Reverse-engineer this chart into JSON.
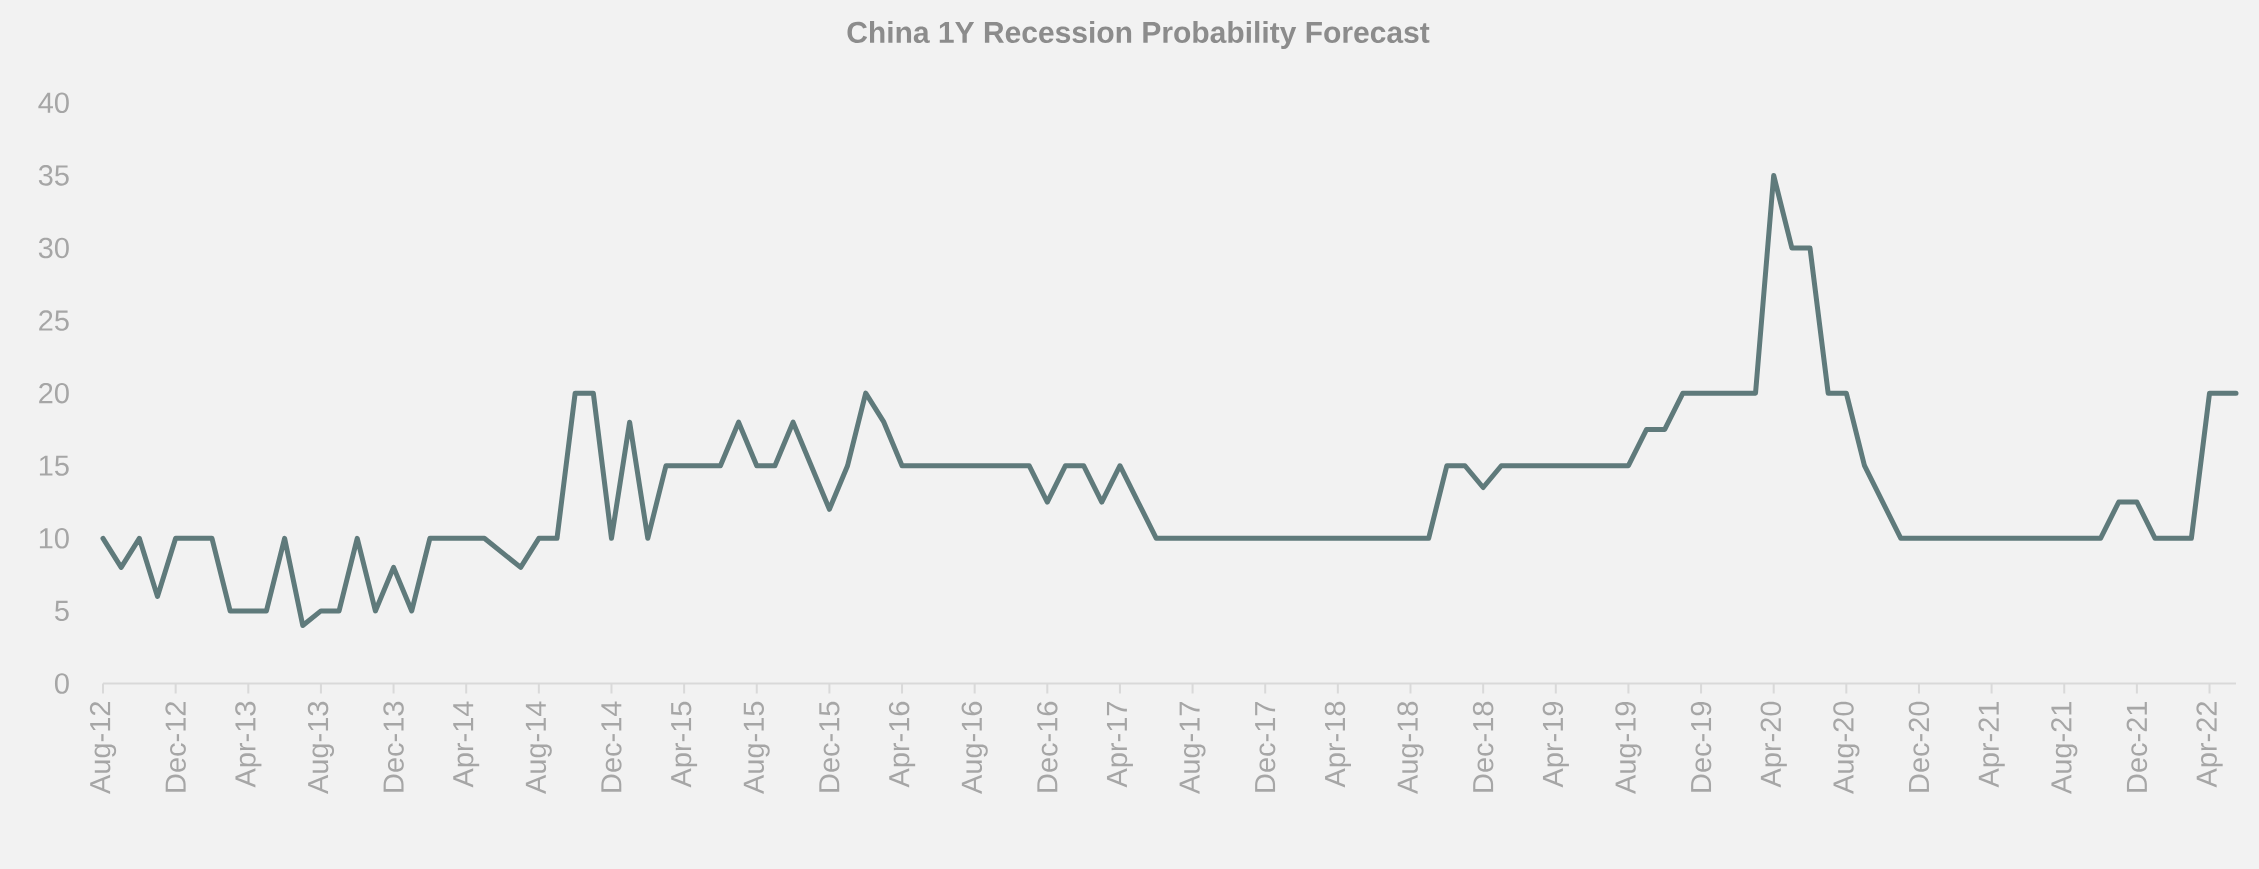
{
  "chart_data": {
    "type": "line",
    "title": "China 1Y Recession Probability Forecast",
    "x": [
      "2012-08",
      "2012-09",
      "2012-10",
      "2012-11",
      "2012-12",
      "2013-02",
      "2013-03",
      "2013-05",
      "2013-06",
      "2013-07",
      "2013-08",
      "2013-09",
      "2013-10",
      "2013-11",
      "2013-12",
      "2014-01",
      "2014-02",
      "2014-05",
      "2014-07",
      "2014-08",
      "2014-09",
      "2014-10",
      "2014-11",
      "2014-12",
      "2015-01",
      "2015-02",
      "2015-03",
      "2015-06",
      "2015-07",
      "2015-08",
      "2015-09",
      "2015-10",
      "2015-12",
      "2016-01",
      "2016-02",
      "2016-03",
      "2016-04",
      "2016-11",
      "2016-12",
      "2017-01",
      "2017-02",
      "2017-03",
      "2017-04",
      "2017-05",
      "2017-06",
      "2018-09",
      "2018-10",
      "2018-11",
      "2018-12",
      "2019-01",
      "2019-08",
      "2019-09",
      "2019-10",
      "2019-11",
      "2020-03",
      "2020-04",
      "2020-05",
      "2020-06",
      "2020-07",
      "2020-08",
      "2020-09",
      "2020-11",
      "2021-10",
      "2021-11",
      "2021-12",
      "2022-01",
      "2022-03",
      "2022-04",
      "2022-05-15"
    ],
    "series": [
      {
        "color": "#5f7a7b",
        "values": [
          10,
          8,
          10,
          6,
          10,
          10,
          5,
          5,
          10,
          4,
          5,
          5,
          10,
          5,
          8,
          5,
          10,
          10,
          8,
          10,
          10,
          20,
          20,
          10,
          18,
          10,
          15,
          15,
          18,
          15,
          15,
          18,
          12,
          15,
          20,
          18,
          15,
          15,
          12.5,
          15,
          15,
          12.5,
          15,
          12.5,
          10,
          10,
          15,
          15,
          13.5,
          15,
          15,
          17.5,
          17.5,
          20,
          20,
          35,
          30,
          30,
          20,
          20,
          15,
          10,
          10,
          12.5,
          12.5,
          10,
          10,
          20,
          20
        ]
      }
    ],
    "xlim": [
      "2012-08",
      "2022-05-15"
    ],
    "xticks": [
      {
        "value": "2012-08",
        "label": "Aug-12"
      },
      {
        "value": "2012-12",
        "label": "Dec-12"
      },
      {
        "value": "2013-04",
        "label": "Apr-13"
      },
      {
        "value": "2013-08",
        "label": "Aug-13"
      },
      {
        "value": "2013-12",
        "label": "Dec-13"
      },
      {
        "value": "2014-04",
        "label": "Apr-14"
      },
      {
        "value": "2014-08",
        "label": "Aug-14"
      },
      {
        "value": "2014-12",
        "label": "Dec-14"
      },
      {
        "value": "2015-04",
        "label": "Apr-15"
      },
      {
        "value": "2015-08",
        "label": "Aug-15"
      },
      {
        "value": "2015-12",
        "label": "Dec-15"
      },
      {
        "value": "2016-04",
        "label": "Apr-16"
      },
      {
        "value": "2016-08",
        "label": "Aug-16"
      },
      {
        "value": "2016-12",
        "label": "Dec-16"
      },
      {
        "value": "2017-04",
        "label": "Apr-17"
      },
      {
        "value": "2017-08",
        "label": "Aug-17"
      },
      {
        "value": "2017-12",
        "label": "Dec-17"
      },
      {
        "value": "2018-04",
        "label": "Apr-18"
      },
      {
        "value": "2018-08",
        "label": "Aug-18"
      },
      {
        "value": "2018-12",
        "label": "Dec-18"
      },
      {
        "value": "2019-04",
        "label": "Apr-19"
      },
      {
        "value": "2019-08",
        "label": "Aug-19"
      },
      {
        "value": "2019-12",
        "label": "Dec-19"
      },
      {
        "value": "2020-04",
        "label": "Apr-20"
      },
      {
        "value": "2020-08",
        "label": "Aug-20"
      },
      {
        "value": "2020-12",
        "label": "Dec-20"
      },
      {
        "value": "2021-04",
        "label": "Apr-21"
      },
      {
        "value": "2021-08",
        "label": "Aug-21"
      },
      {
        "value": "2021-12",
        "label": "Dec-21"
      },
      {
        "value": "2022-04",
        "label": "Apr-22"
      }
    ],
    "ylim": [
      0,
      40
    ],
    "yticks": [
      0,
      5,
      10,
      15,
      20,
      25,
      30,
      35,
      40
    ]
  }
}
